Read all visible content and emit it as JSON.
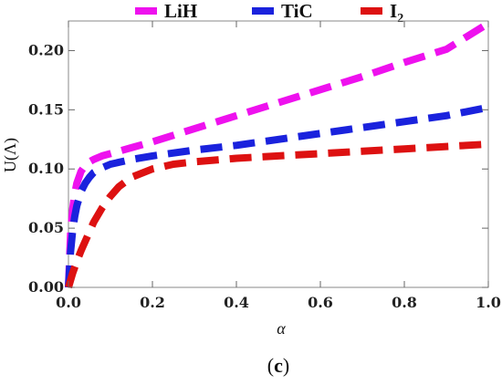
{
  "chart_data": {
    "type": "line",
    "xlabel": "α",
    "ylabel": "U(Λ)",
    "caption_open": "(",
    "caption_letter": "c",
    "caption_close": ")",
    "xlim": [
      0.0,
      1.0
    ],
    "ylim": [
      0.0,
      0.225
    ],
    "xticks": [
      0.0,
      0.2,
      0.4,
      0.6,
      0.8,
      1.0
    ],
    "xtick_labels": [
      "0.0",
      "0.2",
      "0.4",
      "0.6",
      "0.8",
      "1.0"
    ],
    "yticks": [
      0.0,
      0.05,
      0.1,
      0.15,
      0.2
    ],
    "ytick_labels": [
      "0.00",
      "0.05",
      "0.10",
      "0.15",
      "0.20"
    ],
    "grid": false,
    "legend_position": "top",
    "line_style": "dashed",
    "series": [
      {
        "name": "LiH",
        "legend_main": "LiH",
        "legend_sub": "",
        "color": "#ee11ee",
        "x": [
          0.0,
          0.005,
          0.01,
          0.015,
          0.02,
          0.03,
          0.04,
          0.05,
          0.06,
          0.08,
          0.1,
          0.15,
          0.2,
          0.3,
          0.4,
          0.5,
          0.6,
          0.7,
          0.8,
          0.9,
          1.0
        ],
        "y": [
          0.0,
          0.045,
          0.066,
          0.079,
          0.088,
          0.098,
          0.103,
          0.106,
          0.108,
          0.111,
          0.113,
          0.118,
          0.123,
          0.134,
          0.145,
          0.156,
          0.167,
          0.178,
          0.19,
          0.201,
          0.223
        ]
      },
      {
        "name": "TiC",
        "legend_main": "TiC",
        "legend_sub": "",
        "color": "#1a22dd",
        "x": [
          0.0,
          0.005,
          0.01,
          0.015,
          0.02,
          0.03,
          0.04,
          0.05,
          0.06,
          0.08,
          0.1,
          0.15,
          0.2,
          0.3,
          0.4,
          0.5,
          0.6,
          0.7,
          0.8,
          0.9,
          1.0
        ],
        "y": [
          0.0,
          0.03,
          0.048,
          0.06,
          0.069,
          0.081,
          0.088,
          0.093,
          0.097,
          0.101,
          0.104,
          0.108,
          0.111,
          0.116,
          0.12,
          0.125,
          0.13,
          0.135,
          0.14,
          0.145,
          0.152
        ]
      },
      {
        "name": "I2",
        "legend_main": "I",
        "legend_sub": "2",
        "color": "#dd1111",
        "x": [
          0.0,
          0.005,
          0.01,
          0.02,
          0.03,
          0.04,
          0.05,
          0.06,
          0.08,
          0.1,
          0.12,
          0.15,
          0.2,
          0.25,
          0.3,
          0.4,
          0.5,
          0.6,
          0.7,
          0.8,
          0.9,
          1.0
        ],
        "y": [
          0.0,
          0.006,
          0.012,
          0.022,
          0.031,
          0.039,
          0.047,
          0.055,
          0.067,
          0.077,
          0.085,
          0.093,
          0.1,
          0.104,
          0.106,
          0.109,
          0.111,
          0.113,
          0.115,
          0.117,
          0.119,
          0.121
        ]
      }
    ]
  }
}
